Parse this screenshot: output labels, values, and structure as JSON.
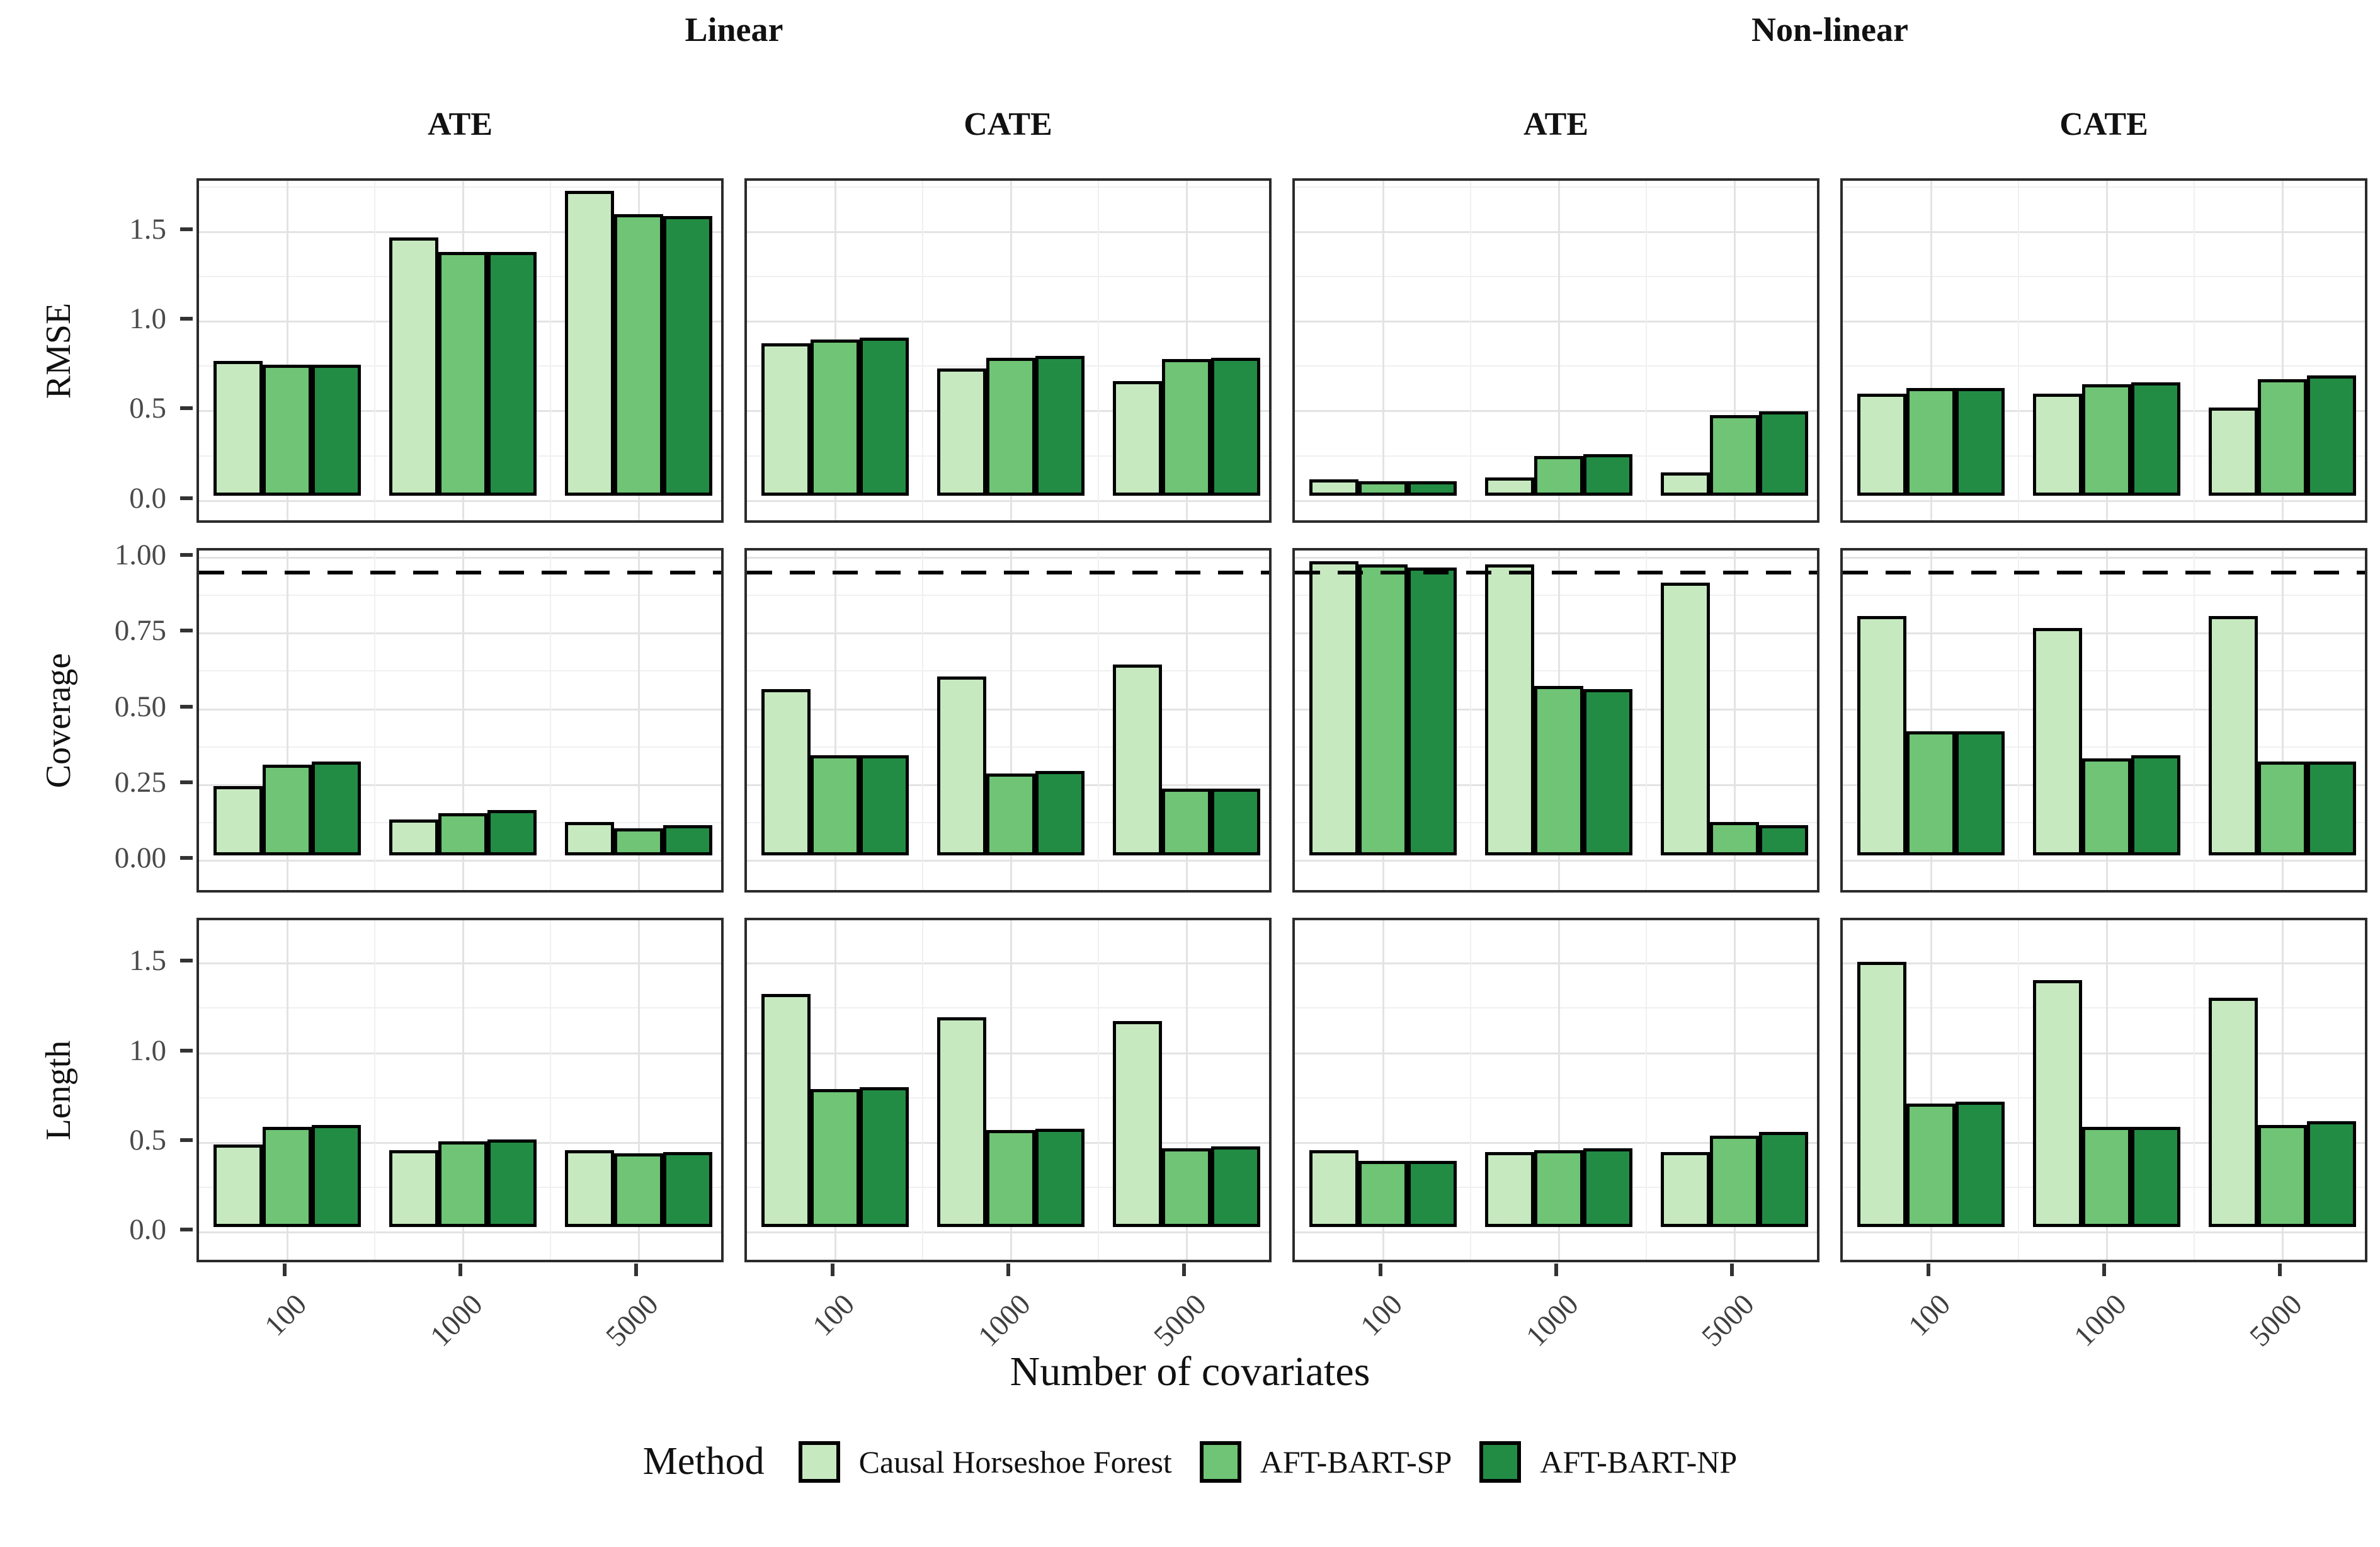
{
  "figure": {
    "facet_groups": [
      "Linear",
      "Non-linear"
    ],
    "facet_cols": [
      "ATE",
      "CATE",
      "ATE",
      "CATE"
    ],
    "row_labels": [
      "RMSE",
      "Coverage",
      "Length"
    ],
    "x_title": "Number of covariates",
    "legend": {
      "title": "Method",
      "items": [
        {
          "label": "Causal Horseshoe Forest",
          "color": "#c7e9c0"
        },
        {
          "label": "AFT-BART-SP",
          "color": "#6fc475"
        },
        {
          "label": "AFT-BART-NP",
          "color": "#238c44"
        }
      ]
    },
    "colors": {
      "bar_stroke": "#000000",
      "panel_border": "#2b2b2b",
      "grid_major": "#e3e3e3",
      "grid_minor": "#f0f0f0",
      "tick_text": "#4a4a4a",
      "ref_line": "#000000"
    }
  },
  "chart_data": {
    "type": "bar",
    "categories": [
      "100",
      "1000",
      "5000"
    ],
    "methods": [
      "Causal Horseshoe Forest",
      "AFT-BART-SP",
      "AFT-BART-NP"
    ],
    "legend_position": "bottom",
    "grid": "on",
    "rows": [
      {
        "metric": "RMSE",
        "ticks": [
          0,
          0.5,
          1.0,
          1.5
        ],
        "tick_labels": [
          "0.0",
          "0.5",
          "1.0",
          "1.5"
        ],
        "ylim": [
          0,
          1.78
        ],
        "ref_line": null,
        "panels": [
          {
            "facet": "Linear ATE",
            "values": [
              [
                0.75,
                0.73,
                0.73
              ],
              [
                1.44,
                1.36,
                1.36
              ],
              [
                1.7,
                1.57,
                1.56
              ]
            ]
          },
          {
            "facet": "Linear CATE",
            "values": [
              [
                0.85,
                0.87,
                0.88
              ],
              [
                0.71,
                0.77,
                0.78
              ],
              [
                0.64,
                0.76,
                0.77
              ]
            ]
          },
          {
            "facet": "Non-linear ATE",
            "values": [
              [
                0.09,
                0.08,
                0.08
              ],
              [
                0.1,
                0.22,
                0.23
              ],
              [
                0.13,
                0.45,
                0.47
              ]
            ]
          },
          {
            "facet": "Non-linear CATE",
            "values": [
              [
                0.57,
                0.6,
                0.6
              ],
              [
                0.57,
                0.62,
                0.63
              ],
              [
                0.49,
                0.65,
                0.67
              ]
            ]
          }
        ]
      },
      {
        "metric": "Coverage",
        "ticks": [
          0,
          0.25,
          0.5,
          0.75,
          1.0
        ],
        "tick_labels": [
          "0.00",
          "0.25",
          "0.50",
          "0.75",
          "1.00"
        ],
        "ylim": [
          0,
          1.02
        ],
        "ref_line": 0.95,
        "panels": [
          {
            "facet": "Linear ATE",
            "values": [
              [
                0.23,
                0.3,
                0.31
              ],
              [
                0.12,
                0.14,
                0.15
              ],
              [
                0.11,
                0.09,
                0.1
              ]
            ]
          },
          {
            "facet": "Linear CATE",
            "values": [
              [
                0.55,
                0.33,
                0.33
              ],
              [
                0.59,
                0.27,
                0.28
              ],
              [
                0.63,
                0.22,
                0.22
              ]
            ]
          },
          {
            "facet": "Non-linear ATE",
            "values": [
              [
                0.97,
                0.96,
                0.95
              ],
              [
                0.96,
                0.56,
                0.55
              ],
              [
                0.9,
                0.11,
                0.1
              ]
            ]
          },
          {
            "facet": "Non-linear CATE",
            "values": [
              [
                0.79,
                0.41,
                0.41
              ],
              [
                0.75,
                0.32,
                0.33
              ],
              [
                0.79,
                0.31,
                0.31
              ]
            ]
          }
        ]
      },
      {
        "metric": "Length",
        "ticks": [
          0,
          0.5,
          1.0,
          1.5
        ],
        "tick_labels": [
          "0.0",
          "0.5",
          "1.0",
          "1.5"
        ],
        "ylim": [
          0,
          1.78
        ],
        "ref_line": null,
        "panels": [
          {
            "facet": "Linear ATE",
            "values": [
              [
                0.46,
                0.56,
                0.57
              ],
              [
                0.43,
                0.48,
                0.49
              ],
              [
                0.43,
                0.41,
                0.42
              ]
            ]
          },
          {
            "facet": "Linear CATE",
            "values": [
              [
                1.3,
                0.77,
                0.78
              ],
              [
                1.17,
                0.54,
                0.55
              ],
              [
                1.15,
                0.44,
                0.45
              ]
            ]
          },
          {
            "facet": "Non-linear ATE",
            "values": [
              [
                0.43,
                0.37,
                0.37
              ],
              [
                0.42,
                0.43,
                0.44
              ],
              [
                0.42,
                0.51,
                0.53
              ]
            ]
          },
          {
            "facet": "Non-linear CATE",
            "values": [
              [
                1.48,
                0.69,
                0.7
              ],
              [
                1.38,
                0.56,
                0.56
              ],
              [
                1.28,
                0.57,
                0.59
              ]
            ]
          }
        ]
      }
    ]
  }
}
